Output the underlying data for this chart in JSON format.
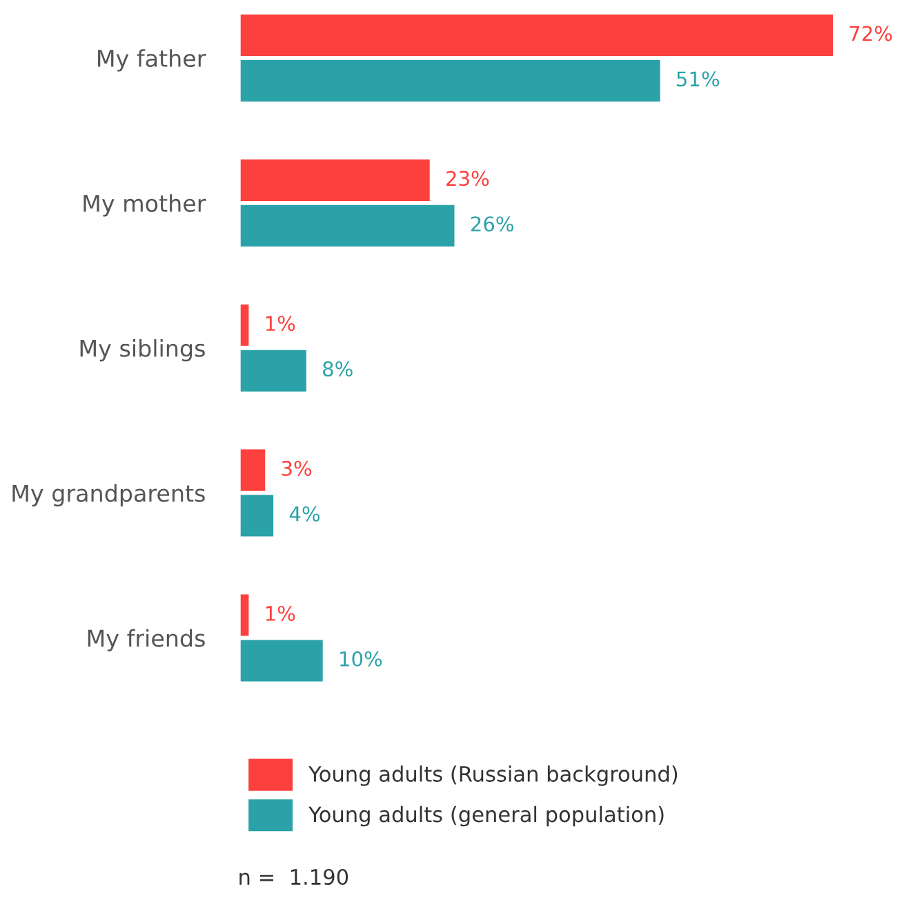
{
  "chart_data": {
    "type": "bar",
    "orientation": "horizontal",
    "categories": [
      "My father",
      "My mother",
      "My siblings",
      "My grandparents",
      "My friends"
    ],
    "series": [
      {
        "name": "Young adults (Russian background)",
        "color": "#fb403d",
        "values": [
          72,
          23,
          1,
          3,
          1
        ],
        "value_labels": [
          "72%",
          "23%",
          "1%",
          "3%",
          "1%"
        ]
      },
      {
        "name": "Young adults (general population)",
        "color": "#2aa2a8",
        "values": [
          51,
          26,
          8,
          4,
          10
        ],
        "value_labels": [
          "51%",
          "26%",
          "8%",
          "4%",
          "10%"
        ]
      }
    ],
    "legend": "bottom",
    "grid": false,
    "tick_labels": "y",
    "annotations": [
      "n =  1.190"
    ]
  }
}
